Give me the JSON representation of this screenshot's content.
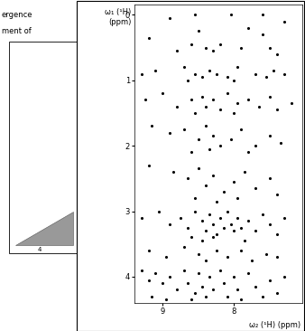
{
  "chart_data": {
    "type": "scatter",
    "x_label": "ω₂ (¹H) (ppm)",
    "y_label": "ω₁ (¹H)\n(ppm)",
    "annotations": [
      "ergence",
      "ment of",
      "4"
    ],
    "color": "#000000",
    "marker": "o",
    "xlim": [
      9.4,
      7.05
    ],
    "xticks": [
      9,
      8
    ],
    "ylim": [
      4.4,
      -0.15
    ],
    "yticks": [
      0,
      1,
      2,
      3,
      4
    ],
    "x": [
      8.55,
      8.05,
      7.6,
      8.9,
      7.3,
      9.2,
      8.6,
      8.4,
      8.3,
      8.2,
      7.9,
      7.6,
      7.5,
      7.4,
      8.8,
      8.5,
      7.8,
      9.3,
      9.1,
      8.7,
      8.55,
      8.45,
      8.35,
      8.25,
      8.1,
      7.95,
      7.7,
      7.55,
      7.45,
      7.3,
      8.65,
      8.0,
      9.25,
      9.0,
      8.8,
      8.6,
      8.45,
      8.4,
      8.3,
      8.2,
      8.1,
      7.95,
      7.8,
      7.65,
      7.5,
      7.4,
      7.2,
      8.55,
      8.0,
      9.15,
      8.9,
      8.7,
      8.5,
      8.4,
      8.3,
      8.2,
      8.05,
      7.9,
      7.7,
      7.5,
      7.35,
      8.6,
      8.35,
      7.8,
      9.2,
      8.85,
      8.65,
      8.5,
      8.4,
      8.3,
      8.15,
      8.0,
      7.85,
      7.7,
      7.5,
      7.4,
      8.55,
      8.25,
      7.95,
      9.3,
      9.05,
      8.9,
      8.75,
      8.65,
      8.55,
      8.45,
      8.4,
      8.35,
      8.3,
      8.25,
      8.2,
      8.15,
      8.1,
      8.05,
      8.0,
      7.95,
      7.9,
      7.8,
      7.7,
      7.6,
      7.5,
      7.4,
      7.3,
      8.6,
      8.45,
      8.3,
      7.85,
      9.2,
      8.95,
      8.7,
      8.5,
      8.4,
      8.25,
      8.1,
      7.9,
      7.75,
      7.55,
      7.4,
      9.3,
      9.2,
      9.1,
      9.0,
      8.9,
      8.8,
      8.7,
      8.65,
      8.55,
      8.5,
      8.45,
      8.4,
      8.35,
      8.3,
      8.2,
      8.15,
      8.1,
      8.0,
      7.95,
      7.9,
      7.8,
      7.7,
      7.6,
      7.5,
      7.4,
      7.3,
      9.15,
      8.95,
      8.6
    ],
    "y": [
      0.0,
      0.0,
      0.0,
      0.05,
      0.1,
      0.35,
      0.45,
      0.5,
      0.55,
      0.45,
      0.5,
      0.3,
      0.5,
      0.6,
      0.55,
      0.25,
      0.2,
      0.9,
      0.85,
      0.8,
      0.9,
      0.95,
      0.85,
      0.9,
      0.95,
      0.8,
      0.9,
      0.95,
      0.85,
      0.9,
      1.0,
      1.0,
      1.3,
      1.2,
      1.4,
      1.3,
      1.25,
      1.4,
      1.3,
      1.45,
      1.2,
      1.35,
      1.3,
      1.4,
      1.25,
      1.45,
      1.35,
      1.5,
      1.5,
      1.7,
      1.8,
      1.75,
      1.9,
      1.7,
      1.85,
      2.0,
      1.9,
      1.75,
      2.0,
      1.85,
      1.95,
      2.1,
      2.05,
      2.1,
      2.3,
      2.4,
      2.5,
      2.35,
      2.6,
      2.45,
      2.7,
      2.55,
      2.4,
      2.65,
      2.5,
      2.75,
      2.8,
      2.85,
      2.8,
      3.1,
      3.0,
      3.2,
      3.1,
      3.25,
      3.0,
      3.15,
      3.3,
      3.05,
      3.2,
      3.35,
      3.1,
      3.25,
      3.0,
      3.2,
      3.3,
      3.1,
      3.25,
      3.15,
      3.3,
      3.05,
      3.2,
      3.35,
      3.1,
      3.4,
      3.45,
      3.4,
      3.45,
      3.6,
      3.7,
      3.55,
      3.65,
      3.75,
      3.6,
      3.7,
      3.6,
      3.75,
      3.65,
      3.7,
      3.9,
      4.05,
      3.95,
      4.1,
      4.0,
      4.2,
      3.9,
      4.1,
      4.25,
      3.95,
      4.15,
      4.3,
      4.0,
      4.2,
      3.9,
      4.1,
      4.3,
      4.0,
      4.2,
      4.35,
      3.95,
      4.15,
      4.3,
      4.05,
      4.25,
      4.0,
      4.3,
      4.35,
      4.35
    ]
  }
}
